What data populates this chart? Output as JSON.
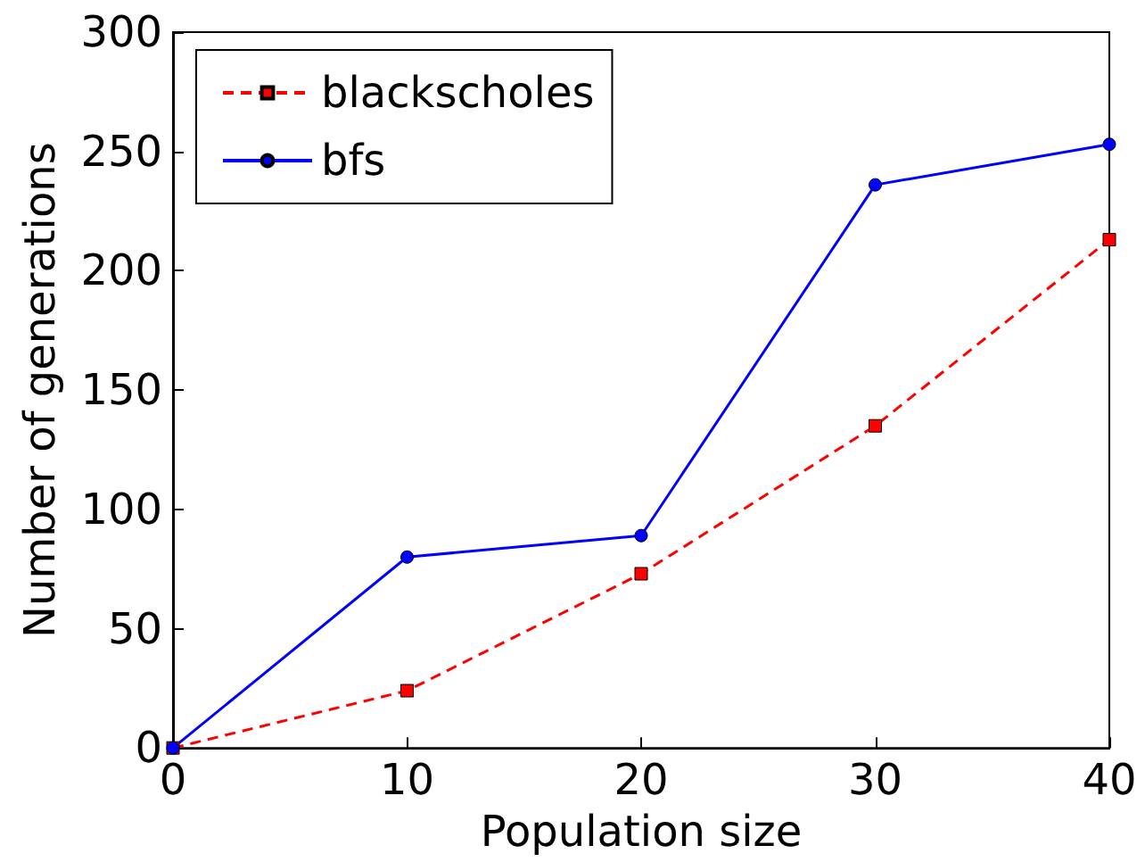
{
  "chart_data": {
    "type": "line",
    "xlabel": "Population size",
    "ylabel": "Number of generations",
    "x": [
      0,
      10,
      20,
      30,
      40
    ],
    "series": [
      {
        "name": "blackscholes",
        "color": "#ff0000",
        "marker": "square",
        "line_style": "dashed",
        "values": [
          0,
          24,
          73,
          135,
          213
        ]
      },
      {
        "name": "bfs",
        "color": "#0000ff",
        "marker": "circle",
        "line_style": "solid",
        "values": [
          0,
          80,
          89,
          236,
          253
        ]
      }
    ],
    "xlim": [
      0,
      40
    ],
    "xticks": [
      0,
      10,
      20,
      30,
      40
    ],
    "ylim": [
      0,
      300
    ],
    "yticks": [
      0,
      50,
      100,
      150,
      200,
      250,
      300
    ],
    "grid": false,
    "legend": "top left"
  }
}
